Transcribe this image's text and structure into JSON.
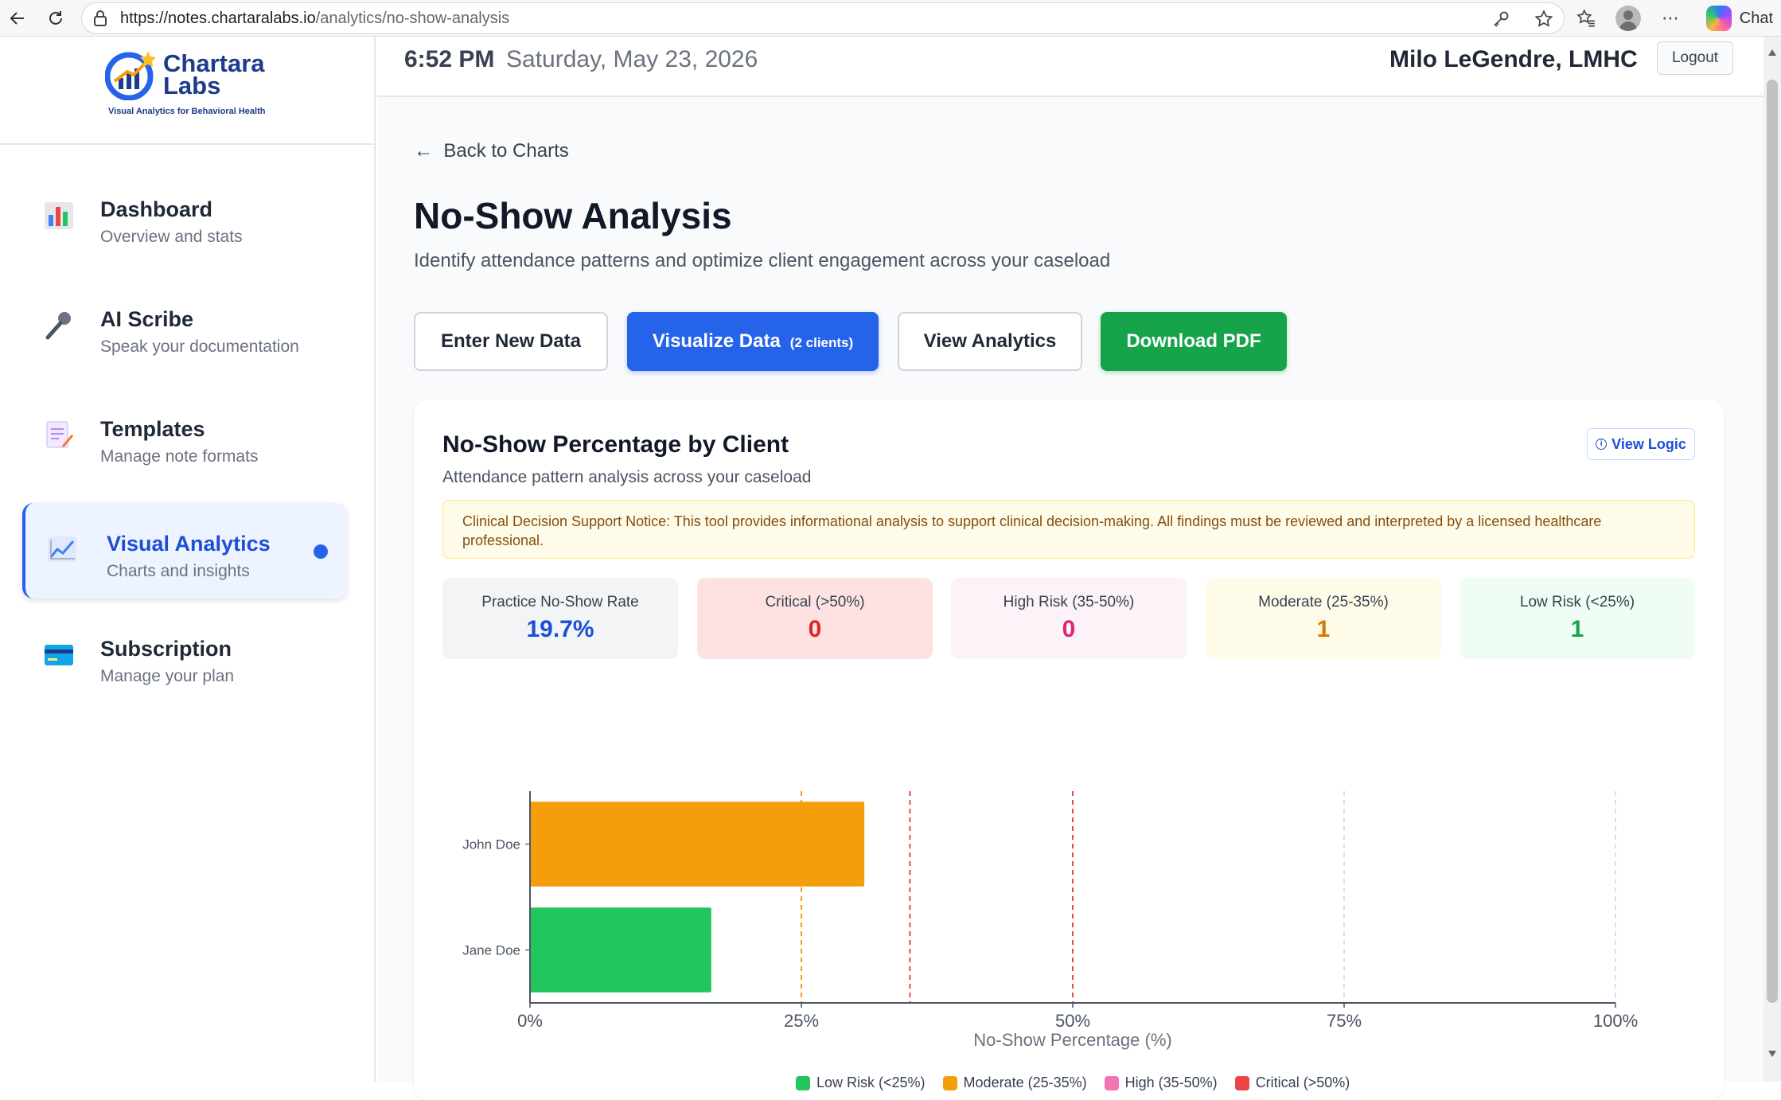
{
  "browser": {
    "url_host": "https://notes.chartaralabs.io",
    "url_path": "/analytics/no-show-analysis",
    "chat_label": "Chat",
    "icons": [
      "back-arrow-icon",
      "refresh-icon",
      "lock-icon",
      "key-icon",
      "star-icon",
      "favorites-icon",
      "profile-icon",
      "more-icon",
      "copilot-icon"
    ]
  },
  "sidebar": {
    "logo_line1": "Chartara",
    "logo_line2": "Labs",
    "logo_tagline": "Visual Analytics for Behavioral Health",
    "items": [
      {
        "title": "Dashboard",
        "subtitle": "Overview and stats",
        "icon": "bar-chart-icon"
      },
      {
        "title": "AI Scribe",
        "subtitle": "Speak your documentation",
        "icon": "microphone-icon"
      },
      {
        "title": "Templates",
        "subtitle": "Manage note formats",
        "icon": "notepad-icon"
      },
      {
        "title": "Visual Analytics",
        "subtitle": "Charts and insights",
        "icon": "line-chart-icon",
        "active": true
      },
      {
        "title": "Subscription",
        "subtitle": "Manage your plan",
        "icon": "credit-card-icon"
      }
    ]
  },
  "topbar": {
    "time": "6:52 PM",
    "date": "Saturday, May 23, 2026",
    "user": "Milo LeGendre, LMHC",
    "logout": "Logout"
  },
  "main": {
    "back_link": "Back to Charts",
    "title": "No-Show Analysis",
    "subtitle": "Identify attendance patterns and optimize client engagement across your caseload",
    "buttons": {
      "enter_data": "Enter New Data",
      "visualize": "Visualize Data",
      "visualize_count": "(2 clients)",
      "view_analytics": "View Analytics",
      "download_pdf": "Download PDF"
    },
    "card": {
      "title": "No-Show Percentage by Client",
      "subtitle": "Attendance pattern analysis across your caseload",
      "view_logic": "View Logic",
      "notice": "Clinical Decision Support Notice: This tool provides informational analysis to support clinical decision-making. All findings must be reviewed and interpreted by a licensed healthcare professional."
    },
    "stats": [
      {
        "label": "Practice No-Show Rate",
        "value": "19.7%",
        "color": "#1d4ed8",
        "bg": "#f3f4f6"
      },
      {
        "label": "Critical (>50%)",
        "value": "0",
        "color": "#dc2626",
        "bg": "#fee2e2"
      },
      {
        "label": "High Risk (35-50%)",
        "value": "0",
        "color": "#db2777",
        "bg": "#fdf2f8"
      },
      {
        "label": "Moderate (25-35%)",
        "value": "1",
        "color": "#d97706",
        "bg": "#fefce8"
      },
      {
        "label": "Low Risk (<25%)",
        "value": "1",
        "color": "#16a34a",
        "bg": "#f0fdf4"
      }
    ]
  },
  "chart_data": {
    "type": "bar",
    "orientation": "horizontal",
    "categories": [
      "John Doe",
      "Jane Doe"
    ],
    "values": [
      30.8,
      16.7
    ],
    "bar_colors": [
      "#f59e0b",
      "#22c55e"
    ],
    "xlabel": "No-Show Percentage (%)",
    "xlim": [
      0,
      100
    ],
    "x_ticks": [
      "0%",
      "25%",
      "50%",
      "75%",
      "100%"
    ],
    "threshold_lines": [
      {
        "value": 25,
        "color": "#f59e0b"
      },
      {
        "value": 35,
        "color": "#ef4444"
      },
      {
        "value": 50,
        "color": "#ef4444"
      }
    ],
    "legend": [
      {
        "label": "Low Risk (<25%)",
        "color": "#22c55e"
      },
      {
        "label": "Moderate (25-35%)",
        "color": "#f59e0b"
      },
      {
        "label": "High (35-50%)",
        "color": "#f472b6"
      },
      {
        "label": "Critical (>50%)",
        "color": "#ef4444"
      }
    ]
  }
}
